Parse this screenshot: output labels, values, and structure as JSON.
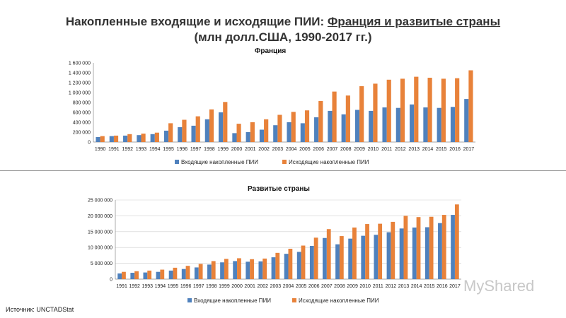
{
  "header": {
    "title_main": "Накопленные входящие и исходящие ПИИ: ",
    "title_underlined": "Франция и развитые страны",
    "subtitle": "(млн долл.США, 1990-2017 гг.)"
  },
  "footer": {
    "source": "Источник: UNCTADStat",
    "watermark": "MyShared"
  },
  "colors": {
    "inward": "#4f81bd",
    "outward": "#e8823a"
  },
  "chart_data": [
    {
      "type": "bar",
      "title": "Франция",
      "ylim": [
        0,
        1600000
      ],
      "yticks": [
        0,
        200000,
        400000,
        600000,
        800000,
        1000000,
        1200000,
        1400000,
        1600000
      ],
      "ytick_labels": [
        "0",
        "200 000",
        "400 000",
        "600 000",
        "800 000",
        "1 000 000",
        "1 200 000",
        "1 400 000",
        "1 600 000"
      ],
      "grid": false,
      "legend": "bottom",
      "categories": [
        "1990",
        "1991",
        "1992",
        "1993",
        "1994",
        "1995",
        "1996",
        "1997",
        "1998",
        "1999",
        "2000",
        "2001",
        "2002",
        "2003",
        "2004",
        "2005",
        "2006",
        "2007",
        "2008",
        "2009",
        "2010",
        "2011",
        "2012",
        "2013",
        "2014",
        "2015",
        "2016",
        "2017"
      ],
      "series": [
        {
          "name": "Входящие накопленные ПИИ",
          "values": [
            100000,
            120000,
            130000,
            140000,
            160000,
            230000,
            300000,
            330000,
            460000,
            600000,
            180000,
            200000,
            250000,
            340000,
            400000,
            380000,
            500000,
            630000,
            560000,
            650000,
            630000,
            700000,
            690000,
            760000,
            700000,
            690000,
            710000,
            870000
          ]
        },
        {
          "name": "Исходящие накопленные ПИИ",
          "values": [
            120000,
            130000,
            160000,
            170000,
            190000,
            380000,
            450000,
            520000,
            660000,
            810000,
            370000,
            400000,
            460000,
            550000,
            610000,
            640000,
            830000,
            1020000,
            940000,
            1130000,
            1180000,
            1260000,
            1280000,
            1320000,
            1300000,
            1280000,
            1290000,
            1450000
          ]
        }
      ]
    },
    {
      "type": "bar",
      "title": "Развитые страны",
      "ylim": [
        0,
        25000000
      ],
      "yticks": [
        0,
        5000000,
        10000000,
        15000000,
        20000000,
        25000000
      ],
      "ytick_labels": [
        "0",
        "5 000 000",
        "10 000 000",
        "15 000 000",
        "20 000 000",
        "25 000 000"
      ],
      "grid": true,
      "legend": "bottom",
      "categories": [
        "1991",
        "1992",
        "1993",
        "1994",
        "1995",
        "1996",
        "1997",
        "1998",
        "1999",
        "2000",
        "2001",
        "2002",
        "2003",
        "2004",
        "2005",
        "2006",
        "2007",
        "2008",
        "2009",
        "2010",
        "2011",
        "2012",
        "2013",
        "2014",
        "2015",
        "2016",
        "2017"
      ],
      "series": [
        {
          "name": "Входящие накопленные ПИИ",
          "values": [
            1800000,
            2000000,
            2100000,
            2300000,
            2700000,
            3200000,
            3700000,
            4600000,
            5300000,
            5700000,
            5500000,
            5600000,
            6900000,
            8000000,
            8600000,
            10500000,
            13000000,
            11000000,
            12800000,
            13700000,
            14000000,
            14800000,
            16000000,
            16300000,
            16400000,
            17700000,
            20300000
          ]
        },
        {
          "name": "Исходящие накопленные ПИИ",
          "values": [
            2300000,
            2500000,
            2700000,
            3000000,
            3600000,
            4200000,
            4800000,
            5700000,
            6400000,
            6600000,
            6300000,
            6500000,
            8300000,
            9600000,
            10600000,
            13100000,
            15800000,
            13600000,
            16300000,
            17400000,
            17500000,
            18100000,
            20000000,
            19600000,
            19700000,
            20300000,
            23600000
          ]
        }
      ]
    }
  ]
}
